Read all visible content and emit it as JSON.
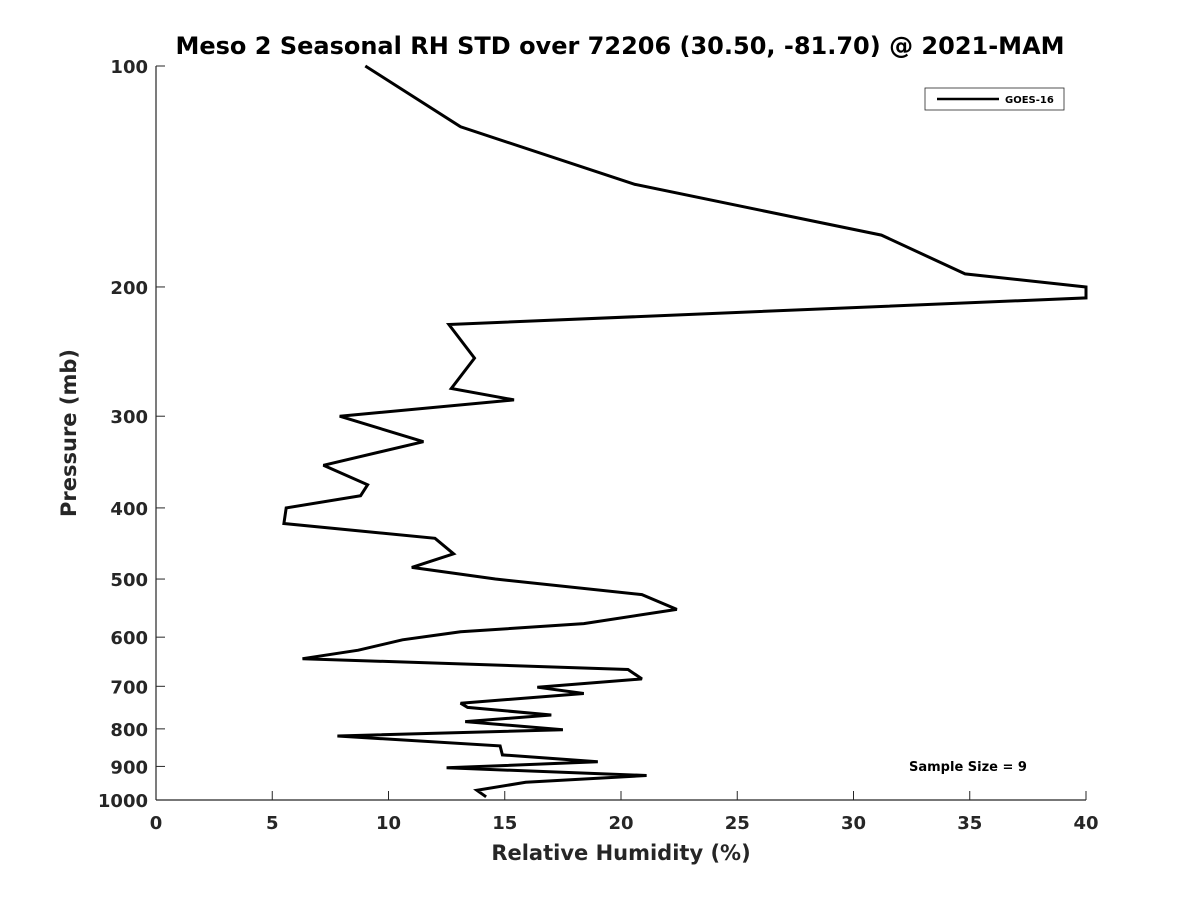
{
  "chart_data": {
    "type": "line",
    "title": "Meso 2 Seasonal RH STD over 72206 (30.50, -81.70) @ 2021-MAM",
    "xlabel": "Relative Humidity (%)",
    "ylabel": "Pressure (mb)",
    "xlim": [
      0,
      40
    ],
    "ylim": [
      100,
      1000
    ],
    "y_scale": "log",
    "y_reversed": true,
    "x_ticks": [
      "0",
      "5",
      "10",
      "15",
      "20",
      "25",
      "30",
      "35",
      "40"
    ],
    "y_ticks": [
      "100",
      "200",
      "300",
      "400",
      "500",
      "600",
      "700",
      "800",
      "900",
      "1000"
    ],
    "grid": false,
    "legend_position": "top-right",
    "annotation": "Sample Size = 9",
    "series": [
      {
        "name": "GOES-16",
        "color": "#000000",
        "points": [
          [
            9.0,
            100
          ],
          [
            13.1,
            121
          ],
          [
            20.6,
            145
          ],
          [
            31.2,
            170
          ],
          [
            34.8,
            192
          ],
          [
            40.0,
            200
          ],
          [
            40.0,
            207
          ],
          [
            12.6,
            225
          ],
          [
            13.7,
            250
          ],
          [
            12.7,
            275
          ],
          [
            15.4,
            285
          ],
          [
            7.9,
            300
          ],
          [
            11.5,
            325
          ],
          [
            7.2,
            350
          ],
          [
            9.1,
            372
          ],
          [
            8.8,
            385
          ],
          [
            5.6,
            400
          ],
          [
            5.5,
            420
          ],
          [
            12.0,
            440
          ],
          [
            12.8,
            462
          ],
          [
            11.0,
            482
          ],
          [
            14.6,
            500
          ],
          [
            20.9,
            525
          ],
          [
            22.4,
            550
          ],
          [
            18.4,
            575
          ],
          [
            13.1,
            590
          ],
          [
            10.6,
            605
          ],
          [
            8.7,
            625
          ],
          [
            6.3,
            642
          ],
          [
            20.3,
            664
          ],
          [
            20.9,
            684
          ],
          [
            16.4,
            702
          ],
          [
            18.4,
            716
          ],
          [
            13.1,
            738
          ],
          [
            13.4,
            748
          ],
          [
            17.0,
            766
          ],
          [
            13.3,
            782
          ],
          [
            17.5,
            802
          ],
          [
            7.8,
            818
          ],
          [
            14.8,
            844
          ],
          [
            14.9,
            868
          ],
          [
            19.0,
            887
          ],
          [
            12.5,
            904
          ],
          [
            21.1,
            926
          ],
          [
            15.9,
            946
          ],
          [
            13.8,
            970
          ],
          [
            14.2,
            990
          ]
        ]
      }
    ]
  }
}
